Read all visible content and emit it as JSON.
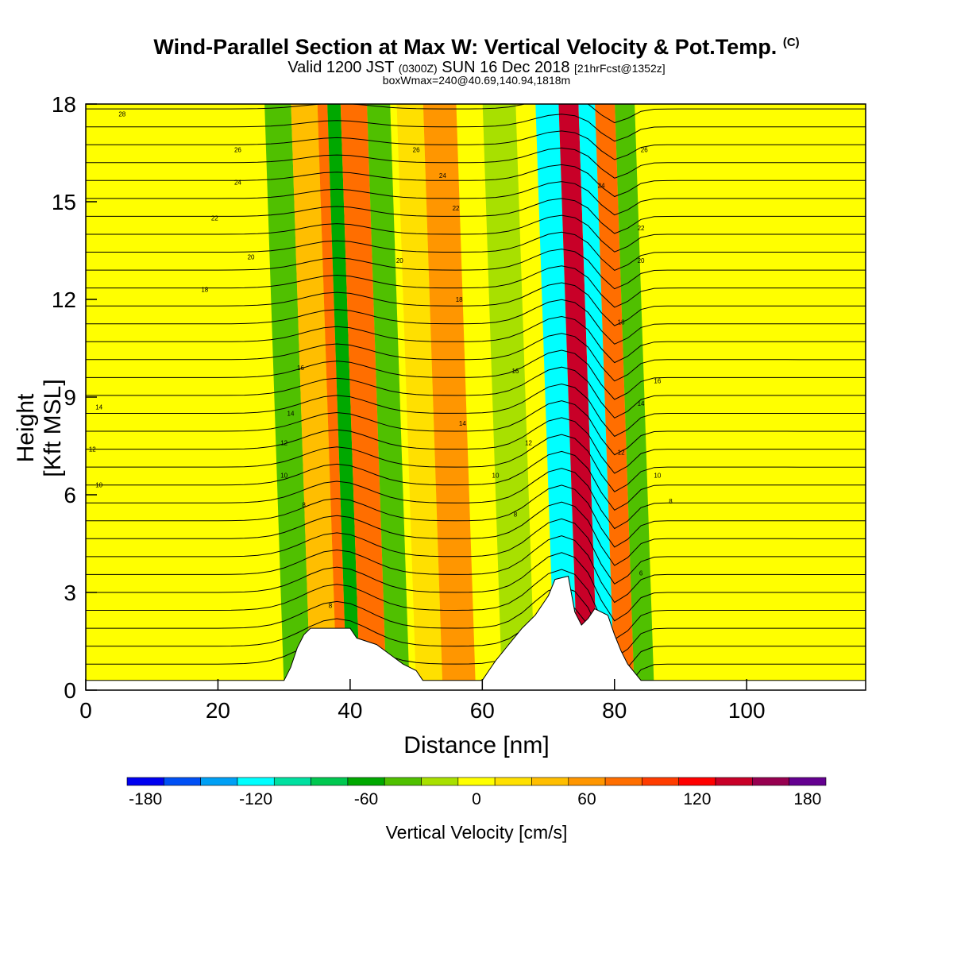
{
  "header": {
    "title": "Wind-Parallel Section at Max W: Vertical Velocity & Pot.Temp.",
    "copyright": "(C)",
    "valid_a": "Valid 1200 JST",
    "valid_zulu": "(0300Z)",
    "valid_b": "SUN 16 Dec 2018",
    "forecast": "[21hrFcst@1352z]",
    "boxinfo": "boxWmax=240@40.69,140.94,1818m"
  },
  "chart_data": {
    "type": "heatmap",
    "title": "Wind-Parallel Section at Max W: Vertical Velocity & Pot.Temp.",
    "xlabel": "Distance [nm]",
    "ylabel": "Height [Kft MSL]",
    "xlim": [
      0,
      118
    ],
    "ylim": [
      0,
      18
    ],
    "x_ticks": [
      0,
      20,
      40,
      60,
      80,
      100
    ],
    "y_ticks": [
      0,
      3,
      6,
      9,
      12,
      15,
      18
    ],
    "colorbar": {
      "label": "Vertical Velocity [cm/s]",
      "ticks": [
        -180,
        -120,
        -60,
        0,
        60,
        120,
        180
      ],
      "boundaries": [
        -190,
        -170,
        -150,
        -130,
        -110,
        -90,
        -70,
        -50,
        -30,
        -10,
        10,
        30,
        50,
        70,
        90,
        110,
        130,
        150,
        170,
        190
      ],
      "colors": [
        "#0000f0",
        "#0050f5",
        "#00a0f5",
        "#00ffff",
        "#00e0a0",
        "#00c850",
        "#00a800",
        "#50c000",
        "#a8e000",
        "#ffff00",
        "#ffe000",
        "#ffbe00",
        "#ff9600",
        "#ff6e00",
        "#ff3c00",
        "#ff0000",
        "#c80028",
        "#960050",
        "#640090"
      ]
    },
    "bands": [
      {
        "x0": 0,
        "x1": 118,
        "value": 0
      },
      {
        "x0": 30,
        "x1": 34,
        "value": -40
      },
      {
        "x0": 34,
        "x1": 38,
        "value": 40
      },
      {
        "x0": 38,
        "x1": 39.5,
        "value": 70
      },
      {
        "x0": 39.5,
        "x1": 41.5,
        "value": -60
      },
      {
        "x0": 41.5,
        "x1": 45.5,
        "value": 80
      },
      {
        "x0": 45.5,
        "x1": 49,
        "value": -50
      },
      {
        "x0": 50,
        "x1": 54,
        "value": 20
      },
      {
        "x0": 54,
        "x1": 59,
        "value": 50
      },
      {
        "x0": 63,
        "x1": 68,
        "value": -30
      },
      {
        "x0": 71,
        "x1": 74.5,
        "value": -120
      },
      {
        "x0": 74.5,
        "x1": 77.5,
        "value": 140
      },
      {
        "x0": 77.5,
        "x1": 80,
        "value": -130
      },
      {
        "x0": 80,
        "x1": 83,
        "value": 80
      },
      {
        "x0": 83,
        "x1": 86,
        "value": -50
      }
    ],
    "isentrope_labels": [
      {
        "x": 5.5,
        "y": 17.7,
        "text": "28"
      },
      {
        "x": 23,
        "y": 16.6,
        "text": "26"
      },
      {
        "x": 23,
        "y": 15.6,
        "text": "24"
      },
      {
        "x": 19.5,
        "y": 14.5,
        "text": "22"
      },
      {
        "x": 25,
        "y": 13.3,
        "text": "20"
      },
      {
        "x": 18,
        "y": 12.3,
        "text": "18"
      },
      {
        "x": 32.5,
        "y": 9.9,
        "text": "16"
      },
      {
        "x": 2,
        "y": 8.7,
        "text": "14"
      },
      {
        "x": 31,
        "y": 8.5,
        "text": "14"
      },
      {
        "x": 1,
        "y": 7.4,
        "text": "12"
      },
      {
        "x": 30,
        "y": 7.6,
        "text": "12"
      },
      {
        "x": 2,
        "y": 6.3,
        "text": "10"
      },
      {
        "x": 30,
        "y": 6.6,
        "text": "10"
      },
      {
        "x": 33,
        "y": 5.7,
        "text": "8"
      },
      {
        "x": 37,
        "y": 2.6,
        "text": "8"
      },
      {
        "x": 50,
        "y": 16.6,
        "text": "26"
      },
      {
        "x": 54,
        "y": 15.8,
        "text": "24"
      },
      {
        "x": 56,
        "y": 14.8,
        "text": "22"
      },
      {
        "x": 47.5,
        "y": 13.2,
        "text": "20"
      },
      {
        "x": 56.5,
        "y": 12.0,
        "text": "18"
      },
      {
        "x": 65,
        "y": 9.8,
        "text": "16"
      },
      {
        "x": 57,
        "y": 8.2,
        "text": "14"
      },
      {
        "x": 67,
        "y": 7.6,
        "text": "12"
      },
      {
        "x": 62,
        "y": 6.6,
        "text": "10"
      },
      {
        "x": 65,
        "y": 5.4,
        "text": "8"
      },
      {
        "x": 84.5,
        "y": 16.6,
        "text": "26"
      },
      {
        "x": 78,
        "y": 15.5,
        "text": "24"
      },
      {
        "x": 84,
        "y": 14.2,
        "text": "22"
      },
      {
        "x": 84,
        "y": 13.2,
        "text": "20"
      },
      {
        "x": 81,
        "y": 11.3,
        "text": "18"
      },
      {
        "x": 86.5,
        "y": 9.5,
        "text": "16"
      },
      {
        "x": 84,
        "y": 8.8,
        "text": "14"
      },
      {
        "x": 81,
        "y": 7.3,
        "text": "12"
      },
      {
        "x": 86.5,
        "y": 6.6,
        "text": "10"
      },
      {
        "x": 88.5,
        "y": 5.8,
        "text": "8"
      },
      {
        "x": 84,
        "y": 3.6,
        "text": "6"
      }
    ],
    "terrain": [
      [
        0,
        0.3
      ],
      [
        30,
        0.3
      ],
      [
        31,
        0.7
      ],
      [
        32,
        1.3
      ],
      [
        33,
        1.7
      ],
      [
        34,
        1.9
      ],
      [
        40,
        1.9
      ],
      [
        41,
        1.6
      ],
      [
        44,
        1.4
      ],
      [
        46,
        1.1
      ],
      [
        48,
        0.8
      ],
      [
        50,
        0.6
      ],
      [
        51,
        0.3
      ],
      [
        60,
        0.3
      ],
      [
        61,
        0.6
      ],
      [
        62,
        0.9
      ],
      [
        64,
        1.4
      ],
      [
        66,
        1.9
      ],
      [
        68,
        2.3
      ],
      [
        70,
        2.9
      ],
      [
        71,
        3.4
      ],
      [
        73,
        3.5
      ],
      [
        74,
        2.4
      ],
      [
        75,
        2.0
      ],
      [
        76,
        2.2
      ],
      [
        77,
        2.5
      ],
      [
        79,
        2.3
      ],
      [
        80,
        1.7
      ],
      [
        81,
        1.2
      ],
      [
        82,
        0.8
      ],
      [
        84,
        0.3
      ],
      [
        118,
        0.3
      ]
    ]
  }
}
